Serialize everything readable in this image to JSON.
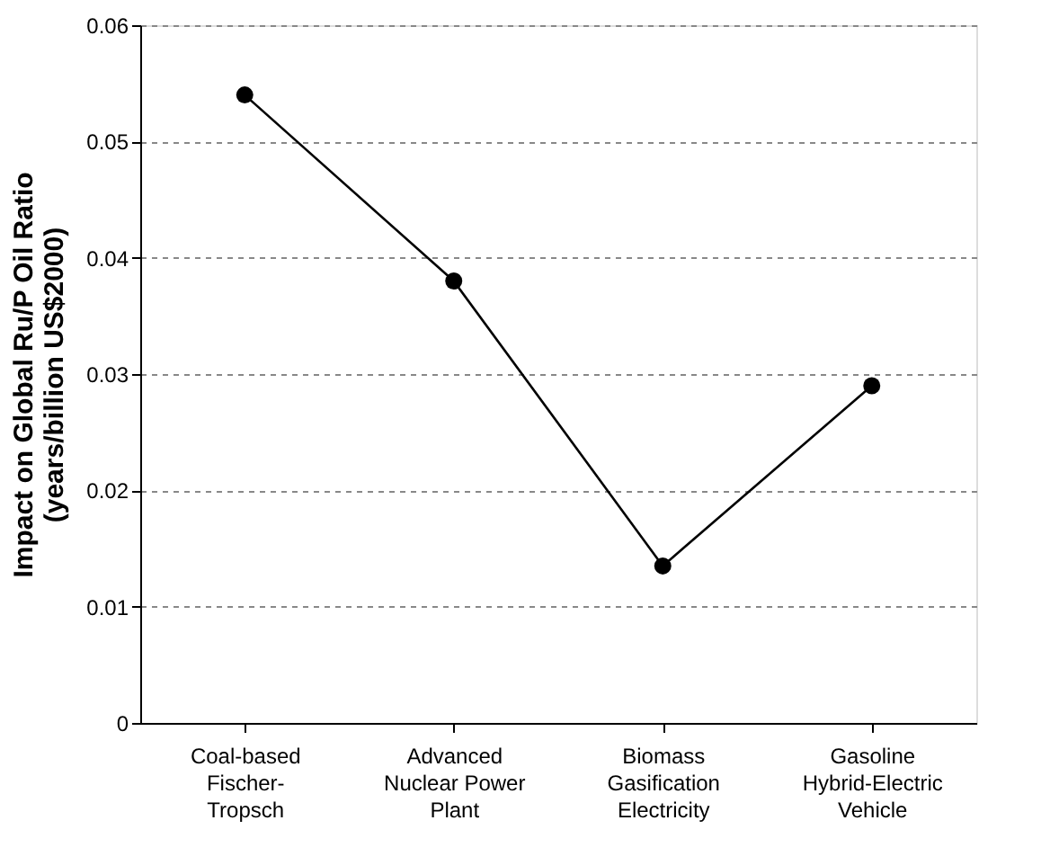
{
  "chart_data": {
    "type": "line",
    "ylabel": "Impact on Global Ru/P Oil Ratio\n(years/billion US$2000)",
    "categories": [
      "Coal-based\nFischer-\nTropsch",
      "Advanced\nNuclear Power\nPlant",
      "Biomass\nGasification\nElectricity",
      "Gasoline\nHybrid-Electric\nVehicle"
    ],
    "series": [
      {
        "color": "#000000",
        "values": [
          0.054,
          0.038,
          0.0135,
          0.029
        ]
      }
    ],
    "ylim": [
      0,
      0.06
    ],
    "yticks": [
      0,
      0.01,
      0.02,
      0.03,
      0.04,
      0.05,
      0.06
    ],
    "grid": "y",
    "marker": "circle",
    "line_style": "solid"
  }
}
